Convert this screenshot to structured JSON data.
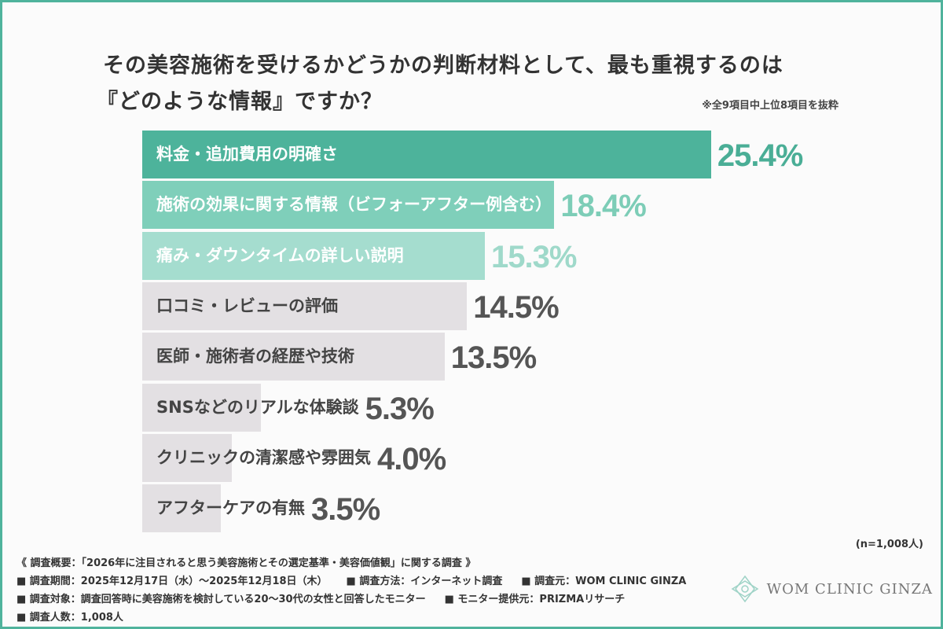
{
  "chart_data": {
    "type": "bar",
    "orientation": "horizontal",
    "title": "その美容施術を受けるかどうかの判断材料として、最も重視するのは『どのような情報』ですか？",
    "title_lines": [
      "その美容施術を受けるかどうかの判断材料として、最も重視するのは",
      "『どのような情報』ですか？"
    ],
    "note": "※全9項目中上位8項目を抜粋",
    "categories": [
      "料金・追加費用の明確さ",
      "施術の効果に関する情報（ビフォーアフター例含む）",
      "痛み・ダウンタイムの詳しい説明",
      "口コミ・レビューの評価",
      "医師・施術者の経歴や技術",
      "SNSなどのリアルな体験談",
      "クリニックの清潔感や雰囲気",
      "アフターケアの有無"
    ],
    "values": [
      25.4,
      18.4,
      15.3,
      14.5,
      13.5,
      5.3,
      4.0,
      3.5
    ],
    "value_labels": [
      "25.4%",
      "18.4%",
      "15.3%",
      "14.5%",
      "13.5%",
      "5.3%",
      "4.0%",
      "3.5%"
    ],
    "bar_colors": [
      "#4db39b",
      "#7fcfba",
      "#a5ddcf",
      "#e3e0e3",
      "#e3e0e3",
      "#e3e0e3",
      "#e3e0e3",
      "#e3e0e3"
    ],
    "label_colors": [
      "#ffffff",
      "#ffffff",
      "#ffffff",
      "#444444",
      "#444444",
      "#444444",
      "#444444",
      "#444444"
    ],
    "value_colors": [
      "#4aae96",
      "#7dcdb7",
      "#9fd9ca",
      "#555555",
      "#555555",
      "#555555",
      "#555555",
      "#555555"
    ],
    "unit": "%",
    "sample": "(n=1,008人)"
  },
  "footer": {
    "summary": "《 調査概要：「2026年に注目されると思う美容施術とその選定基準・美容価値観」に関する調査 》",
    "period": "■ 調査期間：2025年12月17日（水）〜2025年12月18日（木）",
    "method": "■ 調査方法：インターネット調査",
    "source": "■ 調査元：WOM CLINIC GINZA",
    "target": "■ 調査対象：調査回答時に美容施術を検討している20〜30代の女性と回答したモニター",
    "provider": "■ モニター提供元：PRIZMAリサーチ",
    "count": "■ 調査人数：1,008人"
  },
  "logo": "WOM CLINIC GINZA"
}
